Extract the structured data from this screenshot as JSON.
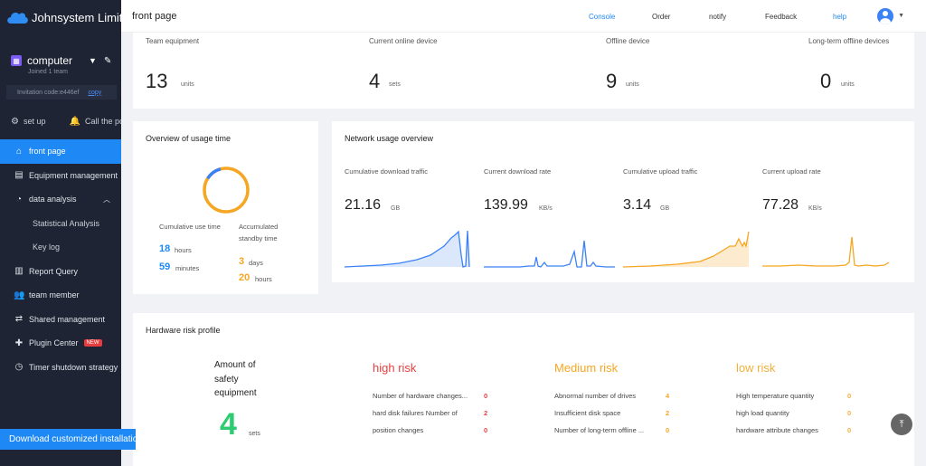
{
  "brand": {
    "name": "Johnsystem Limited"
  },
  "team": {
    "name": "computer",
    "sub": "Joined 1 team",
    "invite_label": "Invitation code:e446ef",
    "copy_label": "copy"
  },
  "quick": {
    "setup": "set up",
    "call": "Call the po"
  },
  "nav": {
    "front_page": "front page",
    "equipment": "Equipment management",
    "data_analysis": "data analysis",
    "statistical": "Statistical Analysis",
    "key_log": "Key log",
    "report": "Report Query",
    "team_member": "team member",
    "shared": "Shared management",
    "plugin": "Plugin Center",
    "plugin_badge": "NEW",
    "timer": "Timer shutdown strategy"
  },
  "download_label": "Download customized installation",
  "header": {
    "title": "front page",
    "console": "Console",
    "order": "Order",
    "notify": "notify",
    "feedback": "Feedback",
    "help": "help"
  },
  "stats": [
    {
      "label": "Team equipment",
      "value": "13",
      "unit": "units"
    },
    {
      "label": "Current online device",
      "value": "4",
      "unit": "sets"
    },
    {
      "label": "Offline device",
      "value": "9",
      "unit": "units"
    },
    {
      "label": "Long-term offline devices",
      "value": "0",
      "unit": "units"
    }
  ],
  "usage": {
    "title": "Overview of usage time",
    "ring_fraction": 0.12,
    "cumulative_label": "Cumulative use time",
    "standby_label": "Accumulated standby time",
    "use_hours": "18",
    "hours_unit": "hours",
    "use_minutes": "59",
    "minutes_unit": "minutes",
    "standby_days": "3",
    "days_unit": "days",
    "standby_hours": "20",
    "standby_hours_unit": "hours"
  },
  "network": {
    "title": "Network usage overview",
    "items": [
      {
        "label": "Cumulative download traffic",
        "value": "21.16",
        "unit": "GB",
        "color": "#3b82f6"
      },
      {
        "label": "Current download rate",
        "value": "139.99",
        "unit": "KB/s",
        "color": "#3b82f6"
      },
      {
        "label": "Cumulative upload traffic",
        "value": "3.14",
        "unit": "GB",
        "color": "#f5a623"
      },
      {
        "label": "Current upload rate",
        "value": "77.28",
        "unit": "KB/s",
        "color": "#f5a623"
      }
    ]
  },
  "hardware": {
    "title": "Hardware risk profile",
    "amount_label": "Amount of safety equipment",
    "amount_value": "4",
    "amount_unit": "sets",
    "high": {
      "title": "high risk",
      "rows": [
        {
          "label": "Number of hardware changes...",
          "value": "0"
        },
        {
          "label": "hard disk failures Number of",
          "value": "2"
        },
        {
          "label": "position changes",
          "value": "0"
        }
      ]
    },
    "medium": {
      "title": "Medium risk",
      "rows": [
        {
          "label": "Abnormal number of drives",
          "value": "4"
        },
        {
          "label": "Insufficient disk space",
          "value": "2"
        },
        {
          "label": "Number of long-term offline ...",
          "value": "0"
        }
      ]
    },
    "low": {
      "title": "low risk",
      "rows": [
        {
          "label": "High temperature quantity",
          "value": "0"
        },
        {
          "label": "high load quantity",
          "value": "0"
        },
        {
          "label": "hardware attribute changes",
          "value": "0"
        }
      ]
    }
  }
}
